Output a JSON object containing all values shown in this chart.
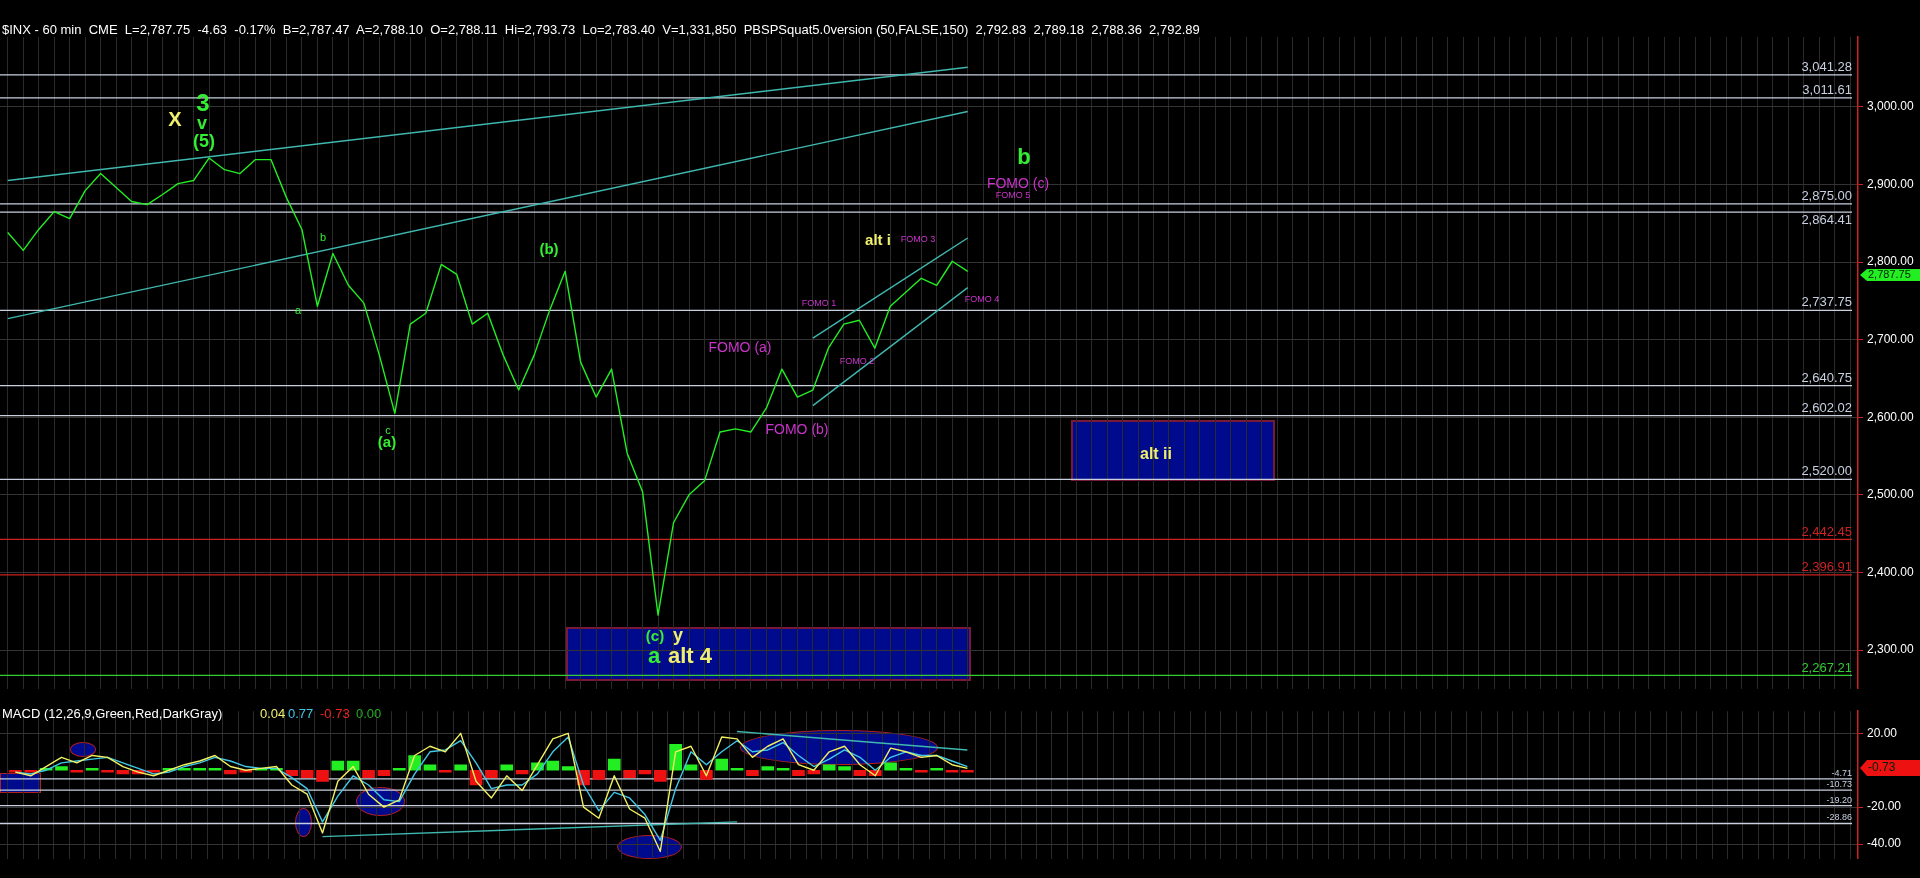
{
  "chart_data": [
    {
      "type": "line",
      "title": "$INX - 60 min  CME  L=2,787.75  -4.63  -0.17%  B=2,787.47  A=2,788.10  O=2,788.11  Hi=2,793.73  Lo=2,783.40  V=1,331,850  PBSPSquat5.0version (50,FALSE,150)  2,792.83  2,789.18  2,788.36  2,792.89",
      "categories": [
        null,
        null,
        null,
        null,
        null,
        null,
        null,
        null,
        null,
        null,
        null,
        null,
        null,
        null,
        null,
        null,
        null,
        null,
        null,
        null,
        null,
        null,
        null,
        null,
        null,
        null,
        null,
        null,
        null,
        null,
        null,
        null,
        null,
        null,
        null,
        null,
        null,
        null,
        null,
        null,
        null,
        null,
        null,
        null,
        null,
        null,
        null,
        null,
        null,
        null,
        null,
        null,
        null,
        null,
        null,
        null,
        null,
        null,
        null,
        null,
        null,
        null,
        null
      ],
      "series": [
        {
          "color": "#22ee22",
          "values": [
            2838,
            2815,
            2842,
            2865,
            2856,
            2892,
            2914,
            2896,
            2878,
            2874,
            2887,
            2901,
            2905,
            2934,
            2919,
            2914,
            2932,
            2932,
            2883,
            2842,
            2743,
            2811,
            2770,
            2747,
            2680,
            2605,
            2720,
            2734,
            2797,
            2784,
            2720,
            2734,
            2680,
            2635,
            2680,
            2738,
            2788,
            2671,
            2626,
            2662,
            2554,
            2504,
            2345,
            2464,
            2500,
            2518,
            2581,
            2585,
            2581,
            2612,
            2662,
            2626,
            2635,
            2689,
            2720,
            2725,
            2689,
            2743,
            2761,
            2779,
            2770,
            2801,
            2788
          ]
        },
        {
          "color": "#3fb8b0",
          "values": [
            2905,
            null,
            null,
            null,
            null,
            null,
            null,
            null,
            null,
            null,
            null,
            null,
            null,
            null,
            null,
            null,
            null,
            null,
            null,
            null,
            null,
            null,
            null,
            null,
            null,
            null,
            null,
            null,
            null,
            null,
            null,
            null,
            null,
            null,
            null,
            null,
            null,
            null,
            null,
            null,
            null,
            null,
            null,
            null,
            null,
            null,
            null,
            null,
            null,
            null,
            null,
            null,
            null,
            null,
            null,
            null,
            null,
            null,
            null,
            null,
            null,
            null,
            3051
          ]
        },
        {
          "color": "#3fb8b0",
          "values": [
            2727,
            null,
            null,
            null,
            null,
            null,
            null,
            null,
            null,
            null,
            null,
            null,
            null,
            null,
            null,
            null,
            null,
            null,
            null,
            null,
            null,
            null,
            null,
            null,
            null,
            null,
            null,
            null,
            null,
            null,
            null,
            null,
            null,
            null,
            null,
            null,
            null,
            null,
            null,
            null,
            null,
            null,
            null,
            null,
            null,
            null,
            null,
            null,
            null,
            null,
            null,
            null,
            null,
            null,
            null,
            null,
            null,
            null,
            null,
            null,
            null,
            null,
            2994
          ]
        },
        {
          "color": "#3fb8b0",
          "values": [
            null,
            null,
            null,
            null,
            null,
            null,
            null,
            null,
            null,
            null,
            null,
            null,
            null,
            null,
            null,
            null,
            null,
            null,
            null,
            null,
            null,
            null,
            null,
            null,
            null,
            null,
            null,
            null,
            null,
            null,
            null,
            null,
            null,
            null,
            null,
            null,
            null,
            null,
            null,
            null,
            null,
            null,
            null,
            null,
            null,
            null,
            null,
            null,
            null,
            null,
            null,
            null,
            2702,
            null,
            null,
            null,
            null,
            null,
            null,
            null,
            null,
            null,
            2831
          ]
        },
        {
          "color": "#3fb8b0",
          "values": [
            null,
            null,
            null,
            null,
            null,
            null,
            null,
            null,
            null,
            null,
            null,
            null,
            null,
            null,
            null,
            null,
            null,
            null,
            null,
            null,
            null,
            null,
            null,
            null,
            null,
            null,
            null,
            null,
            null,
            null,
            null,
            null,
            null,
            null,
            null,
            null,
            null,
            null,
            null,
            null,
            null,
            null,
            null,
            null,
            null,
            null,
            null,
            null,
            null,
            null,
            null,
            null,
            2615,
            null,
            null,
            null,
            null,
            null,
            null,
            null,
            null,
            null,
            2767
          ]
        }
      ],
      "ylim": [
        2250,
        3090
      ],
      "yticks": [
        {
          "value": 2300,
          "label": "2,300.00"
        },
        {
          "value": 2400,
          "label": "2,400.00"
        },
        {
          "value": 2500,
          "label": "2,500.00"
        },
        {
          "value": 2600,
          "label": "2,600.00"
        },
        {
          "value": 2700,
          "label": "2,700.00"
        },
        {
          "value": 2800,
          "label": "2,800.00"
        },
        {
          "value": 2900,
          "label": "2,900.00"
        },
        {
          "value": 3000,
          "label": "3,000.00"
        }
      ],
      "grid": true,
      "tick_labels": "y",
      "ref_lines": [
        {
          "axis": "y",
          "value": 3041.28,
          "label": "3,041.28",
          "color": "#c8d0e0"
        },
        {
          "axis": "y",
          "value": 3011.61,
          "label": "3,011.61",
          "color": "#c8d0e0"
        },
        {
          "axis": "y",
          "value": 2875.0,
          "label": "2,875.00",
          "color": "#c8d0e0"
        },
        {
          "axis": "y",
          "value": 2864.41,
          "label": "2,864.41",
          "color": "#c8d0e0"
        },
        {
          "axis": "y",
          "value": 2737.75,
          "label": "2,737.75",
          "color": "#c8d0e0"
        },
        {
          "axis": "y",
          "value": 2640.75,
          "label": "2,640.75",
          "color": "#c8d0e0"
        },
        {
          "axis": "y",
          "value": 2602.02,
          "label": "2,602.02",
          "color": "#c8d0e0"
        },
        {
          "axis": "y",
          "value": 2520.0,
          "label": "2,520.00",
          "color": "#c8d0e0"
        },
        {
          "axis": "y",
          "value": 2442.45,
          "label": "2,442.45",
          "color": "#cc2222"
        },
        {
          "axis": "y",
          "value": 2396.91,
          "label": "2,396.91",
          "color": "#cc2222"
        },
        {
          "axis": "y",
          "value": 2267.21,
          "label": "2,267.21",
          "color": "#33cc33"
        }
      ],
      "annotations": [
        "X",
        "3",
        "v",
        "(5)",
        "b",
        "a",
        "c",
        "(a)",
        "(b)",
        "(c)",
        "y",
        "a",
        "alt 4",
        "FOMO (a)",
        "FOMO (b)",
        "FOMO 1",
        "FOMO 2",
        "alt i",
        "FOMO 3",
        "FOMO 4",
        "FOMO (c)",
        "FOMO 5",
        "b",
        "alt ii",
        "2,787.75"
      ]
    },
    {
      "type": "line",
      "title": "MACD (12,26,9,Green,Red,DarkGray)",
      "categories": [
        null,
        null,
        null,
        null,
        null,
        null,
        null,
        null,
        null,
        null,
        null,
        null,
        null,
        null,
        null,
        null,
        null,
        null,
        null,
        null,
        null,
        null,
        null,
        null,
        null,
        null,
        null,
        null,
        null,
        null,
        null,
        null,
        null,
        null,
        null,
        null,
        null,
        null,
        null,
        null,
        null,
        null,
        null,
        null,
        null,
        null,
        null,
        null,
        null,
        null,
        null,
        null,
        null,
        null,
        null,
        null,
        null,
        null,
        null,
        null,
        null,
        null,
        null
      ],
      "series": [
        {
          "color": "#f0f060",
          "values": [
            -1,
            -3,
            2,
            7,
            4,
            8,
            7,
            2,
            -1,
            -3,
            0,
            3,
            5,
            8,
            2,
            0,
            1,
            2,
            -8,
            -13,
            -34,
            -6,
            2,
            -13,
            -20,
            -16,
            8,
            13,
            10,
            20,
            -6,
            -15,
            -3,
            -11,
            3,
            17,
            20,
            -20,
            -26,
            -3,
            -21,
            -26,
            -44,
            10,
            13,
            -3,
            18,
            17,
            7,
            13,
            17,
            3,
            0,
            10,
            13,
            3,
            -3,
            12,
            10,
            7,
            8,
            3,
            1
          ]
        },
        {
          "color": "#40c8e8",
          "values": [
            -1,
            -2,
            0,
            4,
            5,
            6,
            7,
            4,
            1,
            -2,
            -1,
            2,
            4,
            7,
            5,
            2,
            1,
            1,
            -4,
            -10,
            -28,
            -14,
            -3,
            -8,
            -16,
            -17,
            -2,
            10,
            11,
            16,
            4,
            -10,
            -8,
            -8,
            -2,
            10,
            18,
            -8,
            -22,
            -12,
            -15,
            -24,
            -38,
            -10,
            10,
            3,
            10,
            16,
            10,
            11,
            15,
            8,
            2,
            6,
            11,
            7,
            0,
            7,
            10,
            8,
            8,
            5,
            2
          ]
        },
        {
          "type": "bar",
          "color": "#22ee22",
          "values": [
            null,
            null,
            1,
            2,
            null,
            1,
            null,
            null,
            null,
            null,
            1,
            1,
            1,
            1,
            null,
            null,
            1,
            1,
            null,
            null,
            null,
            5,
            5,
            null,
            null,
            1,
            8,
            3,
            null,
            3,
            null,
            null,
            3,
            null,
            4,
            5,
            2,
            null,
            null,
            6,
            null,
            null,
            null,
            14,
            3,
            null,
            6,
            1,
            null,
            2,
            1,
            null,
            null,
            3,
            2,
            null,
            null,
            4,
            1,
            null,
            1,
            null,
            null
          ]
        },
        {
          "type": "bar",
          "color": "#ee1111",
          "values": [
            -1,
            -1,
            null,
            null,
            -1,
            null,
            -1,
            -2,
            -2,
            -1,
            null,
            null,
            null,
            null,
            -2,
            -1,
            null,
            null,
            -3,
            -4,
            -6,
            null,
            null,
            -4,
            -3,
            null,
            null,
            null,
            -1,
            null,
            -8,
            -4,
            null,
            -2,
            null,
            null,
            null,
            -8,
            -5,
            null,
            -4,
            -2,
            -6,
            null,
            null,
            -5,
            null,
            null,
            -3,
            null,
            null,
            -3,
            -2,
            null,
            null,
            -3,
            -3,
            null,
            null,
            -1,
            null,
            -1,
            -1
          ]
        },
        {
          "color": "#3fb8b0",
          "values": [
            null,
            null,
            null,
            null,
            null,
            null,
            null,
            null,
            null,
            null,
            null,
            null,
            null,
            null,
            null,
            null,
            null,
            null,
            null,
            null,
            null,
            null,
            null,
            null,
            null,
            null,
            null,
            null,
            null,
            null,
            null,
            null,
            null,
            null,
            null,
            null,
            null,
            null,
            null,
            null,
            null,
            null,
            null,
            null,
            null,
            null,
            null,
            21,
            null,
            null,
            null,
            null,
            null,
            null,
            null,
            null,
            null,
            null,
            null,
            null,
            null,
            null,
            11
          ]
        },
        {
          "color": "#3fb8b0",
          "values": [
            null,
            null,
            null,
            null,
            null,
            null,
            null,
            null,
            null,
            null,
            null,
            null,
            null,
            null,
            null,
            null,
            null,
            null,
            null,
            null,
            -36,
            null,
            null,
            null,
            null,
            null,
            null,
            null,
            null,
            null,
            null,
            null,
            null,
            null,
            null,
            null,
            null,
            null,
            null,
            null,
            null,
            null,
            null,
            null,
            null,
            null,
            null,
            -28,
            null,
            null,
            null,
            null,
            null,
            null,
            null,
            null,
            null,
            null,
            null,
            null,
            null,
            null,
            null
          ]
        }
      ],
      "ylim": [
        -48,
        32
      ],
      "yticks": [
        {
          "value": 20,
          "label": "20.00"
        },
        {
          "value": -20,
          "label": "-20.00"
        },
        {
          "value": -40,
          "label": "-40.00"
        }
      ],
      "grid": true,
      "tick_labels": "y",
      "ref_lines": [
        {
          "axis": "y",
          "value": -4.71,
          "label": "-4.71",
          "color": "#c8d0e0"
        },
        {
          "axis": "y",
          "value": -10.73,
          "label": "-10.73",
          "color": "#c8d0e0"
        },
        {
          "axis": "y",
          "value": -19.2,
          "label": "-19.20",
          "color": "#c8d0e0"
        },
        {
          "axis": "y",
          "value": -28.86,
          "label": "-28.86",
          "color": "#c8d0e0"
        }
      ],
      "annotations": [
        "0.04",
        "0.77",
        "-0.73",
        "0.00",
        "-0.73"
      ]
    }
  ]
}
